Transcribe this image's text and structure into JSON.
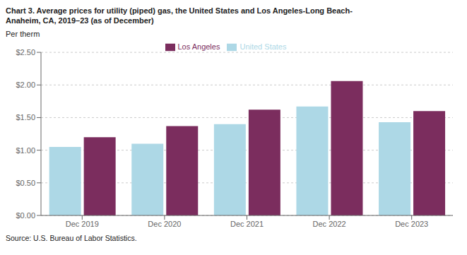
{
  "chart_data": {
    "type": "bar",
    "title": "Chart 3. Average prices for utility (piped) gas, the United States and Los Angeles-Long Beach-\nAnaheim, CA, 2019–23 (as of December)",
    "y_label": "Per therm",
    "source": "Source: U.S. Bureau of Labor Statistics.",
    "categories": [
      "Dec 2019",
      "Dec 2020",
      "Dec 2021",
      "Dec 2022",
      "Dec 2023"
    ],
    "series": [
      {
        "name": "United States",
        "color": "#ADD8E6",
        "values": [
          1.05,
          1.1,
          1.4,
          1.67,
          1.43
        ]
      },
      {
        "name": "Los Angeles",
        "color": "#7B2D5E",
        "values": [
          1.2,
          1.37,
          1.62,
          2.06,
          1.6
        ]
      }
    ],
    "ylim": [
      0.0,
      2.5
    ],
    "yticks": [
      {
        "value": 0.0,
        "label": "$0.00"
      },
      {
        "value": 0.5,
        "label": "$0.50"
      },
      {
        "value": 1.0,
        "label": "$1.00"
      },
      {
        "value": 1.5,
        "label": "$1.50"
      },
      {
        "value": 2.0,
        "label": "$2.00"
      },
      {
        "value": 2.5,
        "label": "$2.50"
      }
    ],
    "grid": true,
    "legend": "top"
  }
}
